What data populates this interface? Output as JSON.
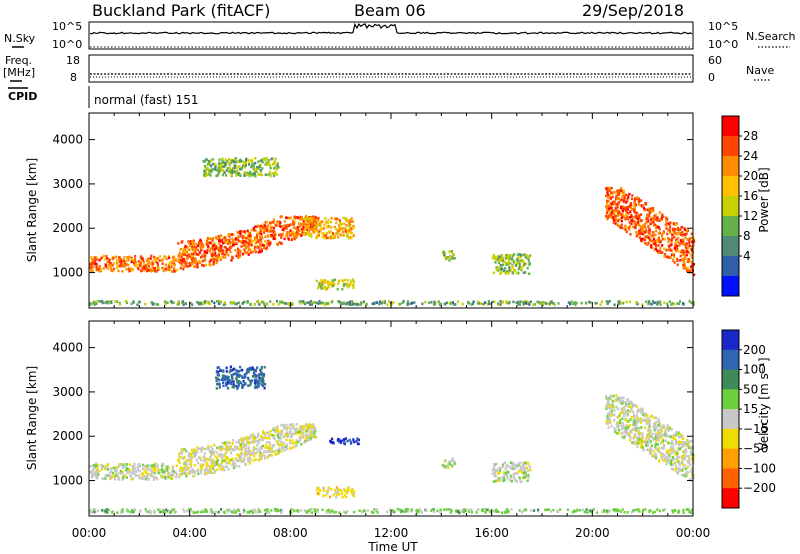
{
  "header": {
    "station": "Buckland Park (fitACF)",
    "beam": "Beam 06",
    "date": "29/Sep/2018"
  },
  "strip_panels": {
    "nsky": {
      "label": "N.Sky",
      "ticks": [
        "10^5",
        "10^0"
      ]
    },
    "nsearch": {
      "label": "N.Search",
      "ticks": [
        "10^5",
        "10^0"
      ]
    },
    "freq": {
      "label_line1": "Freq.",
      "label_line2": "[MHz]",
      "ticks": [
        "18",
        "8"
      ]
    },
    "nave": {
      "label": "Nave",
      "ticks": [
        "60",
        "0"
      ]
    },
    "cpid": {
      "label": "CPID",
      "mode_text": "normal (fast) 151"
    }
  },
  "power_colorbar": {
    "title": "Power [dB]",
    "ticks": [
      "28",
      "24",
      "20",
      "16",
      "12",
      "8",
      "4"
    ],
    "colors": [
      "#ff0000",
      "#ff4400",
      "#ff8c00",
      "#ffc000",
      "#c8d000",
      "#66b24a",
      "#4e8a74",
      "#2f5fa8",
      "#0010ff"
    ]
  },
  "velocity_colorbar": {
    "title": "Velocity [m s⁻¹]",
    "ticks": [
      "200",
      "100",
      "50",
      "15",
      "−15",
      "−50",
      "−100",
      "−200"
    ],
    "colors": [
      "#1a28c8",
      "#2f66b4",
      "#3f8a5a",
      "#6cd03c",
      "#c8c8c8",
      "#f0dc00",
      "#ffa000",
      "#ff6000",
      "#ff0000"
    ]
  },
  "x_axis": {
    "label": "Time UT",
    "ticks": [
      "00:00",
      "04:00",
      "08:00",
      "12:00",
      "16:00",
      "20:00",
      "00:00"
    ]
  },
  "y_axis": {
    "label": "Slant Range [km]",
    "ticks": [
      "4000",
      "3000",
      "2000",
      "1000"
    ]
  },
  "chart_data": [
    {
      "type": "heatmap",
      "panel": "power",
      "xlabel": "Time UT",
      "ylabel": "Slant Range [km]",
      "xlim": [
        0,
        24
      ],
      "ylim": [
        200,
        4600
      ],
      "colorbar_label": "Power [dB]",
      "color_range": [
        0,
        30
      ],
      "features": [
        {
          "t_start": 0.0,
          "t_end": 24.0,
          "range_low": 300,
          "range_high": 450,
          "power": 10
        },
        {
          "t_start": 0.0,
          "t_end": 3.5,
          "range_low": 1050,
          "range_high": 1700,
          "power": 24
        },
        {
          "t_start": 3.5,
          "t_end": 9.0,
          "range_low": 1150,
          "range_high": 2300,
          "power": 25
        },
        {
          "t_start": 8.5,
          "t_end": 10.5,
          "range_low": 1800,
          "range_high": 2650,
          "power": 20
        },
        {
          "t_start": 4.5,
          "t_end": 7.5,
          "range_low": 3200,
          "range_high": 3950,
          "power": 12
        },
        {
          "t_start": 9.0,
          "t_end": 10.5,
          "range_low": 650,
          "range_high": 1050,
          "power": 16
        },
        {
          "t_start": 14.0,
          "t_end": 14.5,
          "range_low": 1300,
          "range_high": 1700,
          "power": 12
        },
        {
          "t_start": 16.0,
          "t_end": 17.5,
          "range_low": 1000,
          "range_high": 1800,
          "power": 12
        },
        {
          "t_start": 20.5,
          "t_end": 24.0,
          "range_low": 1250,
          "range_high": 2950,
          "power": 25
        }
      ]
    },
    {
      "type": "heatmap",
      "panel": "velocity",
      "xlabel": "Time UT",
      "ylabel": "Slant Range [km]",
      "xlim": [
        0,
        24
      ],
      "ylim": [
        200,
        4600
      ],
      "colorbar_label": "Velocity [m s⁻¹]",
      "color_range": [
        -200,
        200
      ],
      "features": [
        {
          "t_start": 0.0,
          "t_end": 24.0,
          "range_low": 300,
          "range_high": 450,
          "velocity": 40
        },
        {
          "t_start": 0.0,
          "t_end": 3.5,
          "range_low": 1050,
          "range_high": 1700,
          "velocity": 0
        },
        {
          "t_start": 3.5,
          "t_end": 9.0,
          "range_low": 1150,
          "range_high": 2300,
          "velocity": -10
        },
        {
          "t_start": 9.5,
          "t_end": 10.7,
          "range_low": 1850,
          "range_high": 2100,
          "velocity": 200
        },
        {
          "t_start": 5.0,
          "t_end": 7.0,
          "range_low": 3100,
          "range_high": 4000,
          "velocity": 150
        },
        {
          "t_start": 9.0,
          "t_end": 10.5,
          "range_low": 650,
          "range_high": 1050,
          "velocity": -40
        },
        {
          "t_start": 14.0,
          "t_end": 14.5,
          "range_low": 1300,
          "range_high": 1700,
          "velocity": 0
        },
        {
          "t_start": 16.0,
          "t_end": 17.5,
          "range_low": 1000,
          "range_high": 1800,
          "velocity": 0
        },
        {
          "t_start": 20.5,
          "t_end": 24.0,
          "range_low": 1250,
          "range_high": 2950,
          "velocity": 0
        }
      ]
    }
  ]
}
